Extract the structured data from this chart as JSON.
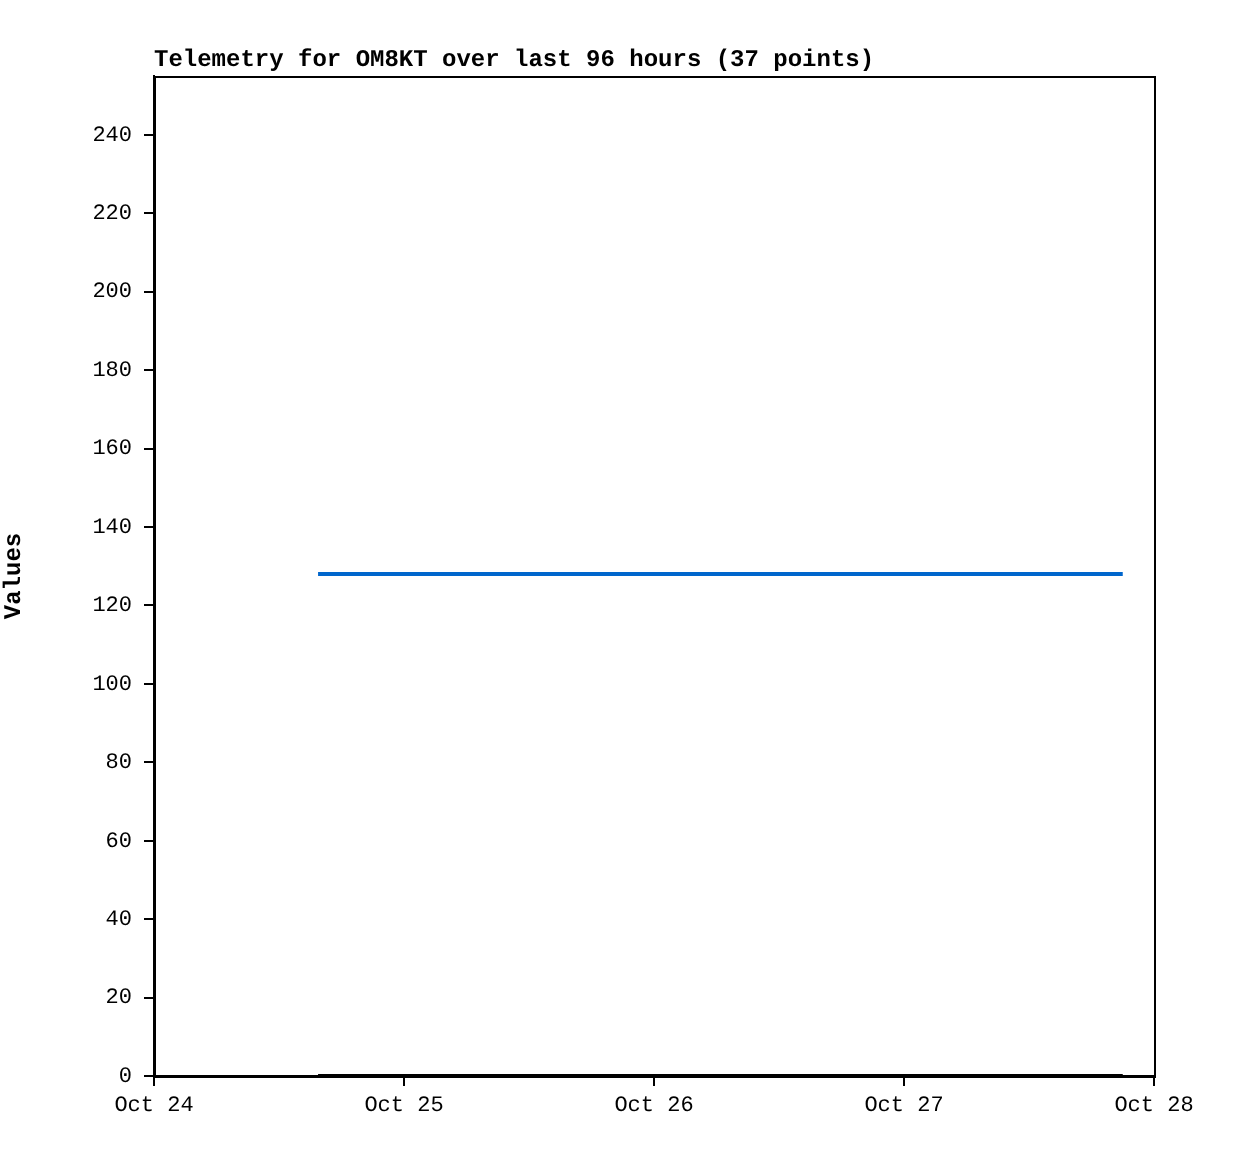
{
  "chart_data": {
    "type": "line",
    "title": "Telemetry for OM8KT over last 96 hours (37 points)",
    "ylabel": "Values",
    "xlim": [
      "--10-24",
      "--10-28"
    ],
    "xticks": [
      {
        "value": "--10-24",
        "label": "Oct 24"
      },
      {
        "value": "--10-25",
        "label": "Oct 25"
      },
      {
        "value": "--10-26",
        "label": "Oct 26"
      },
      {
        "value": "--10-27",
        "label": "Oct 27"
      },
      {
        "value": "--10-28",
        "label": "Oct 28"
      }
    ],
    "ylim": [
      0,
      255
    ],
    "yticks": [
      0,
      20,
      40,
      60,
      80,
      100,
      120,
      140,
      160,
      180,
      200,
      220,
      240
    ],
    "grid": false,
    "legend": false,
    "marker": "none",
    "line_style": "solid",
    "series": [
      {
        "color": "#0066cc",
        "x": [
          "--10-24T15:45",
          "--10-27T21:00"
        ],
        "values": [
          128,
          128
        ]
      },
      {
        "color": "#000000",
        "x": [
          "--10-24T15:45",
          "--10-27T21:00"
        ],
        "values": [
          0,
          0
        ]
      }
    ]
  }
}
